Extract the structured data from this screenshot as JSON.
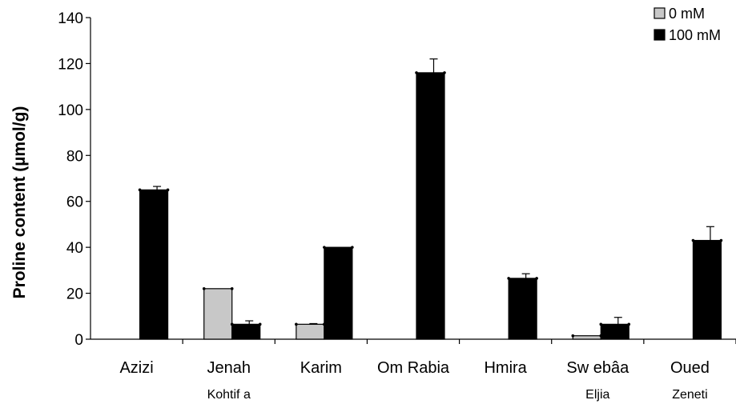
{
  "chart_data": {
    "type": "bar",
    "title": "",
    "xlabel": "",
    "ylabel": "Proline content (µmol/g)",
    "ylim": [
      0,
      140
    ],
    "yticks": [
      0,
      20,
      40,
      60,
      80,
      100,
      120,
      140
    ],
    "categories": [
      [
        "Azizi"
      ],
      [
        "Jenah",
        "Kohtif a"
      ],
      [
        "Karim"
      ],
      [
        "Om Rabia"
      ],
      [
        "Hmira"
      ],
      [
        "Sw ebâa",
        "Eljia"
      ],
      [
        "Oued",
        "Zeneti"
      ]
    ],
    "series": [
      {
        "name": "0 mM",
        "color": "#c8c8c8",
        "values": [
          0,
          22,
          6.5,
          0,
          0,
          1.5,
          0
        ],
        "errors": [
          0,
          0,
          0.3,
          0,
          0,
          0,
          0
        ]
      },
      {
        "name": "100 mM",
        "color": "#000000",
        "values": [
          65,
          6.5,
          40,
          116,
          26.5,
          6.5,
          43
        ],
        "errors": [
          1.5,
          1.5,
          0,
          6,
          2,
          3,
          6
        ]
      }
    ],
    "legend_position": "top-right",
    "grid": false
  }
}
